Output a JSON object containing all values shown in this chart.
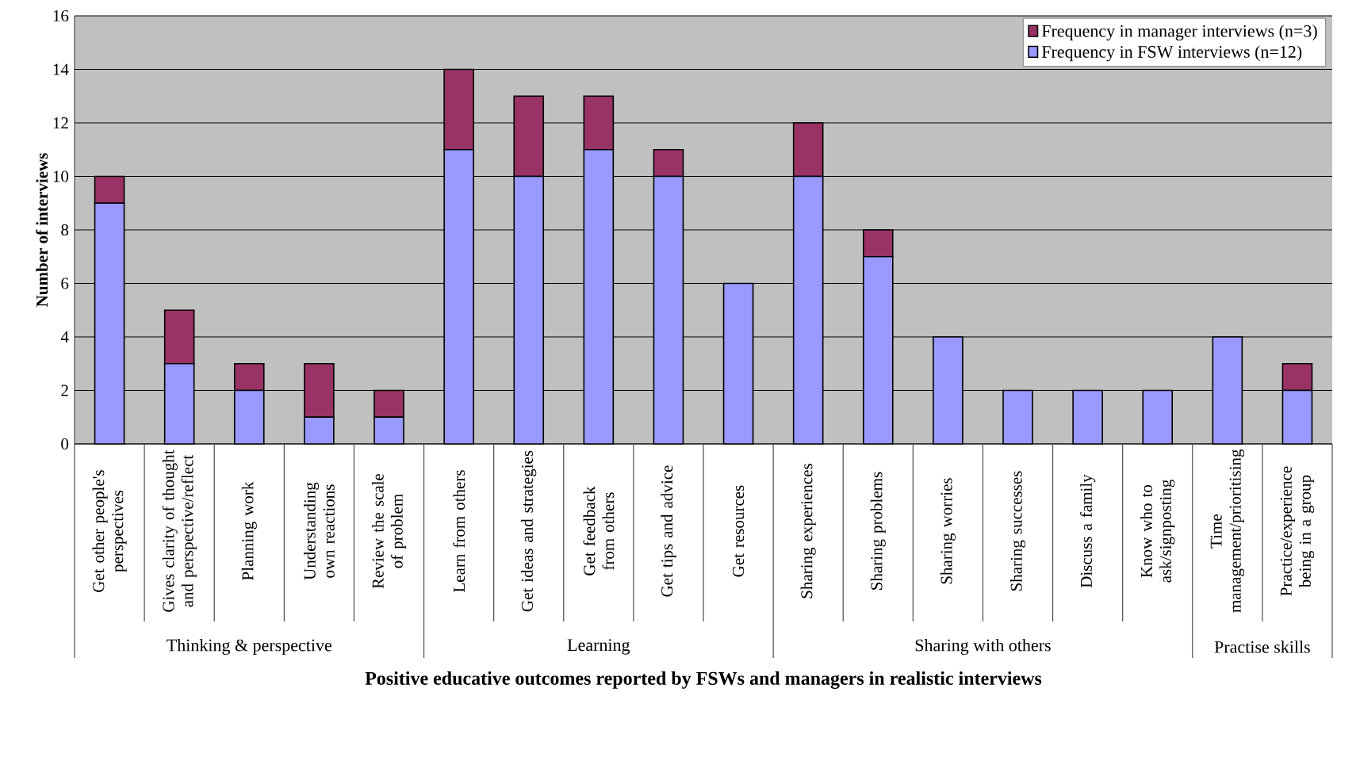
{
  "chart_data": {
    "type": "bar",
    "stacked": true,
    "xlabel": "Positive educative outcomes reported by FSWs and managers in realistic interviews",
    "ylabel": "Number of interviews",
    "categories": [
      "Get other people's perspectives",
      "Gives clarity of thought and perspective/reflect",
      "Planning work",
      "Understanding own reactions",
      "Review the scale of problem",
      "Learn from others",
      "Get ideas and strategies",
      "Get feedback from others",
      "Get tips and advice",
      "Get resources",
      "Sharing experiences",
      "Sharing problems",
      "Sharing worries",
      "Sharing successes",
      "Discuss a family",
      "Know who to ask/signposting",
      "Time management/prioritising",
      "Practice/experience being in a group"
    ],
    "series": [
      {
        "name": "Frequency in FSW interviews (n=12)",
        "color": "#9999ff",
        "values": [
          9,
          3,
          2,
          1,
          1,
          11,
          10,
          11,
          10,
          6,
          10,
          7,
          4,
          2,
          2,
          2,
          4,
          2
        ]
      },
      {
        "name": "Frequency in manager interviews (n=3)",
        "color": "#993366",
        "values": [
          1,
          2,
          1,
          2,
          1,
          3,
          3,
          2,
          1,
          0,
          2,
          1,
          0,
          0,
          0,
          0,
          0,
          1
        ]
      }
    ],
    "ylim": [
      0,
      16
    ],
    "yticks": [
      0,
      2,
      4,
      6,
      8,
      10,
      12,
      14,
      16
    ],
    "grid": "y",
    "legend": "top right",
    "annotations": [
      "Thinking &  perspective",
      "Learning",
      "Sharing with others",
      "Practise skills"
    ]
  }
}
